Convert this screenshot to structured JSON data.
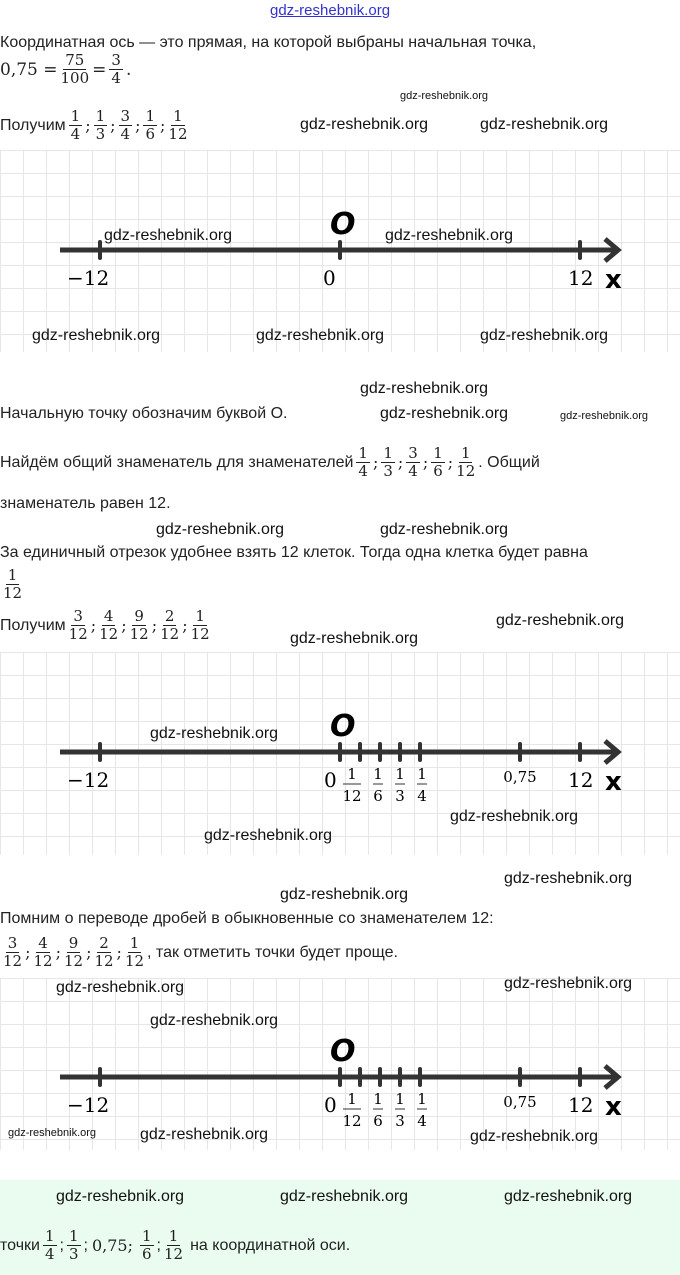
{
  "watermark": "gdz-reshebnik.org",
  "p1": "Координатная ось — это прямая, на которой выбраны начальная точка,",
  "eq": {
    "left": "0,75 =",
    "f1": [
      "75",
      "100"
    ],
    "mid": "=",
    "f2": [
      "3",
      "4"
    ],
    "end": "."
  },
  "get_label": "Получим",
  "fracs_a": [
    [
      "1",
      "4"
    ],
    [
      "1",
      "3"
    ],
    [
      "3",
      "4"
    ],
    [
      "1",
      "6"
    ],
    [
      "1",
      "12"
    ]
  ],
  "fracs_b": [
    [
      "3",
      "12"
    ],
    [
      "4",
      "12"
    ],
    [
      "9",
      "12"
    ],
    [
      "2",
      "12"
    ],
    [
      "1",
      "12"
    ]
  ],
  "p2": "Начальную точку обозначим буквой O.",
  "p3a": "Найдём общий знаменатель для знаменателей",
  "p3b": ". Общий",
  "p3c": "знаменатель равен 12.",
  "p4": "За единичный отрезок удобнее взять 12 клеток. Тогда одна клетка будет равна",
  "one_cell": [
    "1",
    "12"
  ],
  "p5": "Помним о переводе дробей в обыкновенные со знаменателем 12:",
  "p5b": ", так отметить точки будет проще.",
  "p6a": "точки",
  "p6b": "на координатной оси.",
  "p6_list": "0,75;",
  "axis": {
    "origin_label": "O",
    "x_label": "x",
    "min_label": "−12",
    "zero_label": "0",
    "max_label": "12",
    "point_075": "0,75",
    "tick_fracs": [
      [
        "1",
        "12"
      ],
      [
        "1",
        "6"
      ],
      [
        "1",
        "3"
      ],
      [
        "1",
        "4"
      ]
    ]
  }
}
